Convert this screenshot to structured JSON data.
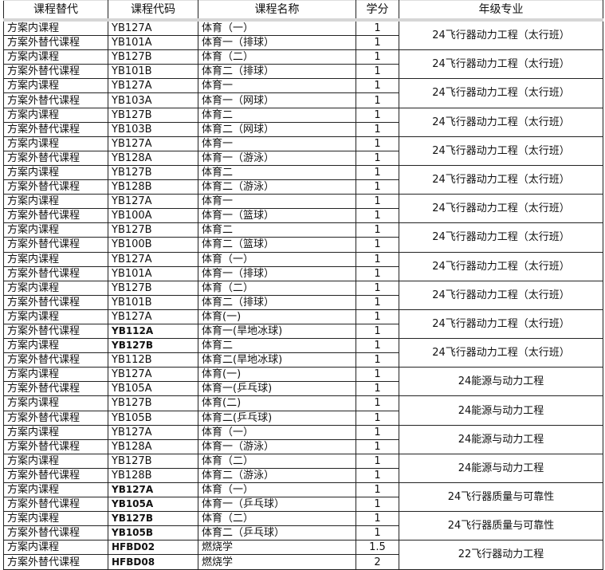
{
  "headers": [
    "课程替代",
    "课程代码",
    "课程名称",
    "学分",
    "年级专业"
  ],
  "groups": [
    {
      "major": "24飞行器动力工程（太行班）",
      "rows": [
        [
          "方案内课程",
          "YB127A",
          "体育（一）",
          "1"
        ],
        [
          "方案外替代课程",
          "YB101A",
          "体育一（排球）",
          "1"
        ]
      ]
    },
    {
      "major": "24飞行器动力工程（太行班）",
      "rows": [
        [
          "方案内课程",
          "YB127B",
          "体育（二）",
          "1"
        ],
        [
          "方案外替代课程",
          "YB101B",
          "体育二（排球）",
          "1"
        ]
      ]
    },
    {
      "major": "24飞行器动力工程（太行班）",
      "rows": [
        [
          "方案内课程",
          "YB127A",
          "体育一",
          "1"
        ],
        [
          "方案外替代课程",
          "YB103A",
          "体育一（网球）",
          "1"
        ]
      ]
    },
    {
      "major": "24飞行器动力工程（太行班）",
      "rows": [
        [
          "方案内课程",
          "YB127B",
          "体育二",
          "1"
        ],
        [
          "方案外替代课程",
          "YB103B",
          "体育二（网球）",
          "1"
        ]
      ]
    },
    {
      "major": "24飞行器动力工程（太行班）",
      "rows": [
        [
          "方案内课程",
          "YB127A",
          "体育一",
          "1"
        ],
        [
          "方案外替代课程",
          "YB128A",
          "体育一（游泳）",
          "1"
        ]
      ]
    },
    {
      "major": "24飞行器动力工程（太行班）",
      "rows": [
        [
          "方案内课程",
          "YB127B",
          "体育二",
          "1"
        ],
        [
          "方案外替代课程",
          "YB128B",
          "体育二（游泳）",
          "1"
        ]
      ]
    },
    {
      "major": "24飞行器动力工程（太行班）",
      "rows": [
        [
          "方案内课程",
          "YB127A",
          "体育一",
          "1"
        ],
        [
          "方案外替代课程",
          "YB100A",
          "体育一（篮球）",
          "1"
        ]
      ]
    },
    {
      "major": "24飞行器动力工程（太行班）",
      "rows": [
        [
          "方案内课程",
          "YB127B",
          "体育二",
          "1"
        ],
        [
          "方案外替代课程",
          "YB100B",
          "体育二（篮球）",
          "1"
        ]
      ]
    },
    {
      "major": "24飞行器动力工程（太行班）",
      "rows": [
        [
          "方案内课程",
          "YB127A",
          "体育（一）",
          "1"
        ],
        [
          "方案外替代课程",
          "YB101A",
          "体育一（排球）",
          "1"
        ]
      ]
    },
    {
      "major": "24飞行器动力工程（太行班）",
      "rows": [
        [
          "方案内课程",
          "YB127B",
          "体育（二）",
          "1"
        ],
        [
          "方案外替代课程",
          "YB101B",
          "体育二（排球）",
          "1"
        ]
      ]
    },
    {
      "major": "24飞行器动力工程（太行班）",
      "rows": [
        [
          "方案内课程",
          "YB127A",
          "体育(一)",
          "1"
        ],
        [
          "方案外替代课程",
          "YB112A",
          "体育一(旱地冰球)",
          "1"
        ]
      ]
    },
    {
      "major": "24飞行器动力工程（太行班）",
      "rows": [
        [
          "方案内课程",
          "YB127B",
          "体育二",
          "1"
        ],
        [
          "方案外替代课程",
          "YB112B",
          "体育二(旱地冰球)",
          "1"
        ]
      ]
    },
    {
      "major": "24能源与动力工程",
      "rows": [
        [
          "方案内课程",
          "YB127A",
          "体育(一)",
          "1"
        ],
        [
          "方案外替代课程",
          "YB105A",
          "体育一(乒乓球)",
          "1"
        ]
      ]
    },
    {
      "major": "24能源与动力工程",
      "rows": [
        [
          "方案内课程",
          "YB127B",
          "体育(二)",
          "1"
        ],
        [
          "方案外替代课程",
          "YB105B",
          "体育二(乒乓球)",
          "1"
        ]
      ]
    },
    {
      "major": "24能源与动力工程",
      "rows": [
        [
          "方案内课程",
          "YB127A",
          "体育（一）",
          "1"
        ],
        [
          "方案外替代课程",
          "YB128A",
          "体育一（游泳）",
          "1"
        ]
      ]
    },
    {
      "major": "24能源与动力工程",
      "rows": [
        [
          "方案内课程",
          "YB127B",
          "体育（二）",
          "1"
        ],
        [
          "方案外替代课程",
          "YB128B",
          "体育二（游泳）",
          "1"
        ]
      ]
    },
    {
      "major": "24飞行器质量与可靠性",
      "rows": [
        [
          "方案内课程",
          "YB127A",
          "体育（一）",
          "1"
        ],
        [
          "方案外替代课程",
          "YB105A",
          "体育一（乒乓球）",
          "1"
        ]
      ]
    },
    {
      "major": "24飞行器质量与可靠性",
      "rows": [
        [
          "方案内课程",
          "YB127B",
          "体育（二）",
          "1"
        ],
        [
          "方案外替代课程",
          "YB105B",
          "体育二（乒乓球）",
          "1"
        ]
      ]
    },
    {
      "major": "22飞行器动力工程",
      "rows": [
        [
          "方案内课程",
          "HFBD02",
          "燃烧学",
          "1.5"
        ],
        [
          "方案外替代课程",
          "HFBD08",
          "燃烧学",
          "2"
        ]
      ]
    }
  ]
}
